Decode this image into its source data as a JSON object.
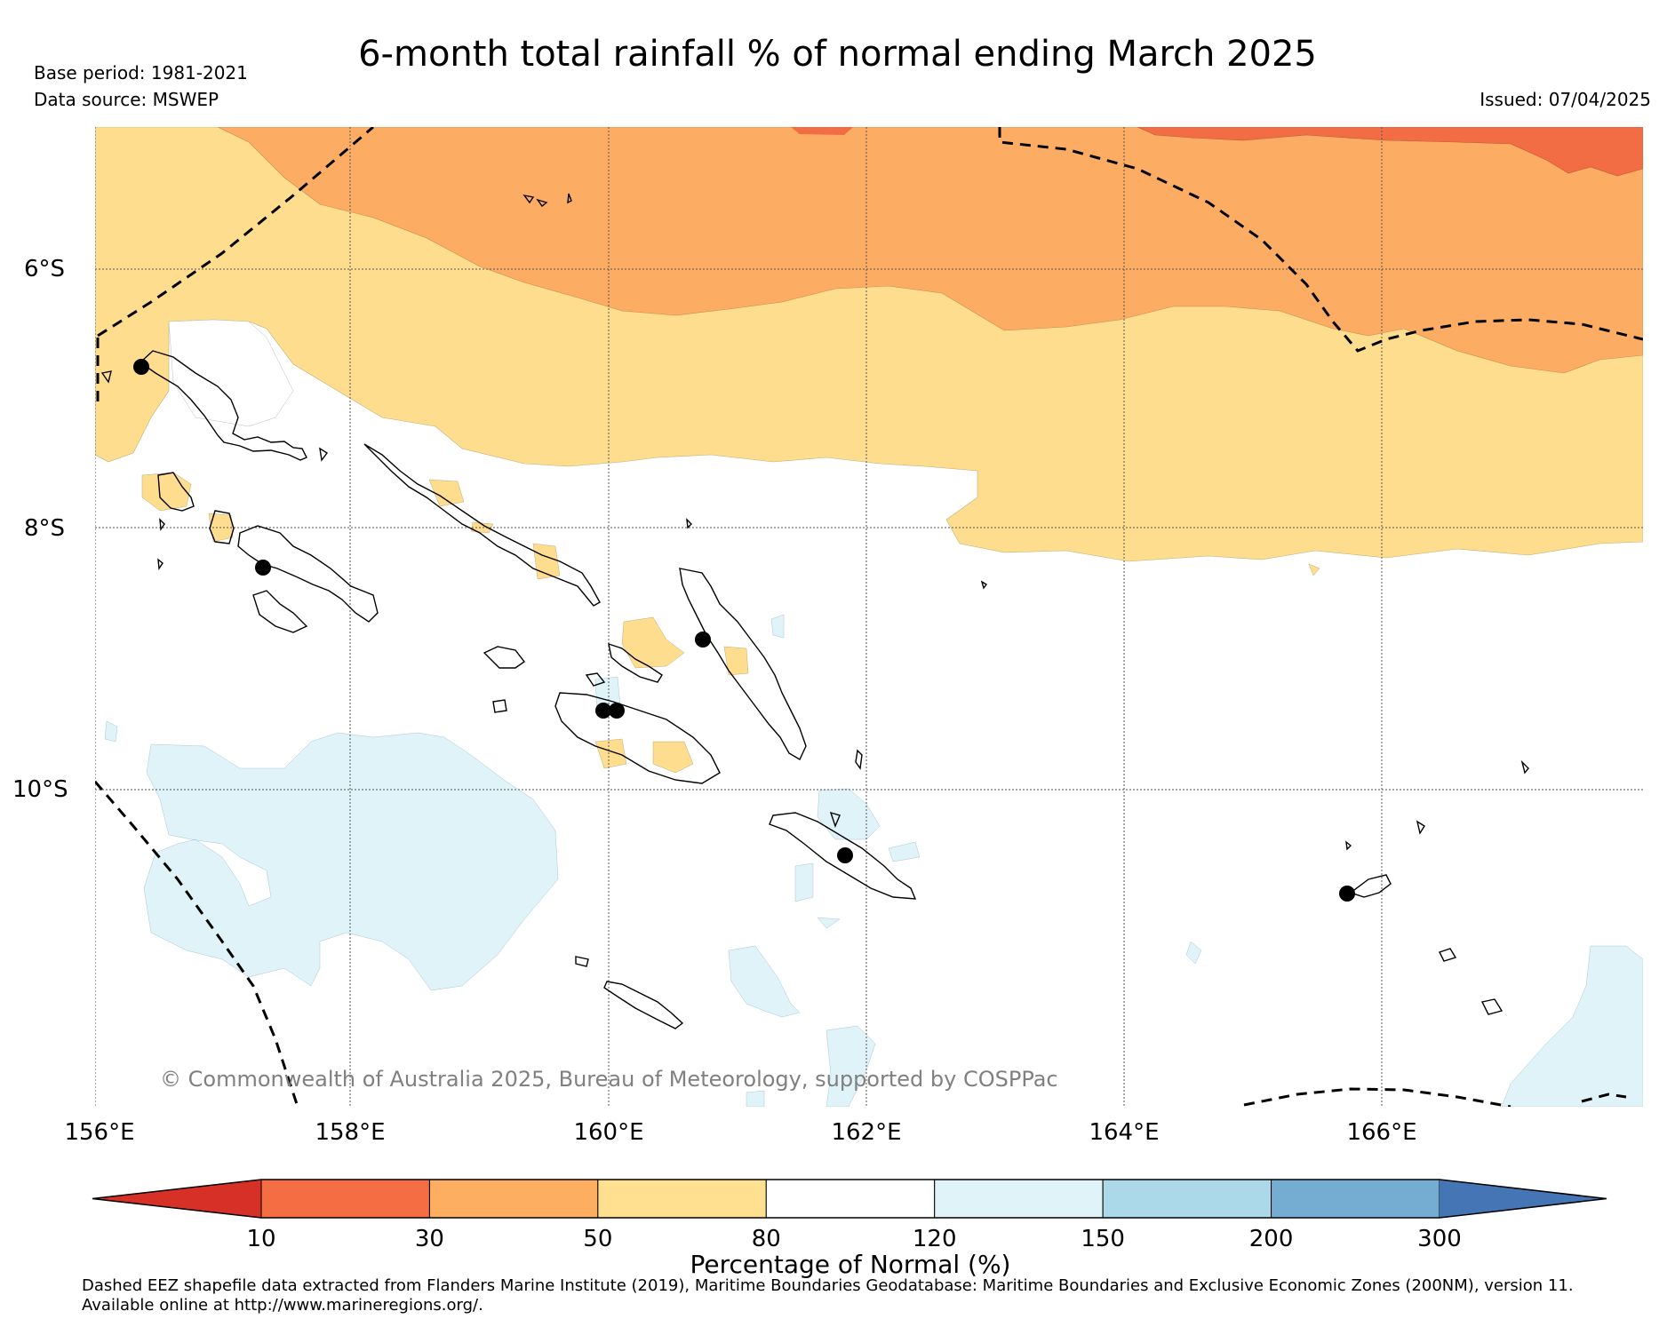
{
  "title": "6-month total rainfall % of normal ending March 2025",
  "base_period": "Base period: 1981-2021",
  "data_source": "Data source: MSWEP",
  "issued": "Issued: 07/04/2025",
  "map": {
    "lat_labels": [
      "6°S",
      "8°S",
      "10°S"
    ],
    "lon_labels": [
      "156°E",
      "158°E",
      "160°E",
      "162°E",
      "164°E",
      "166°E"
    ],
    "copyright": "© Commonwealth of Australia 2025, Bureau of Meteorology, supported by COSPPac",
    "category_colors": {
      "10-30": "#f26d44",
      "30-50": "#fcad63",
      "50-80": "#fedd8e",
      "80-120": "#ffffff",
      "120-150": "#e0f3f8",
      "stations": "#000000"
    }
  },
  "colorbar": {
    "label": "Percentage of Normal (%)",
    "ticks": [
      "10",
      "30",
      "50",
      "80",
      "120",
      "150",
      "200",
      "300"
    ],
    "colors": [
      "#d73027",
      "#f46d43",
      "#fdae61",
      "#fee090",
      "#ffffff",
      "#e0f3f8",
      "#abd9e9",
      "#74add1",
      "#4575b4"
    ]
  },
  "footnote": {
    "line1": "Dashed EEZ shapefile data extracted from Flanders Marine Institute (2019), Maritime Boundaries Geodatabase: Maritime Boundaries and Exclusive Economic Zones (200NM), version 11.",
    "line2": "Available online at http://www.marineregions.org/."
  }
}
